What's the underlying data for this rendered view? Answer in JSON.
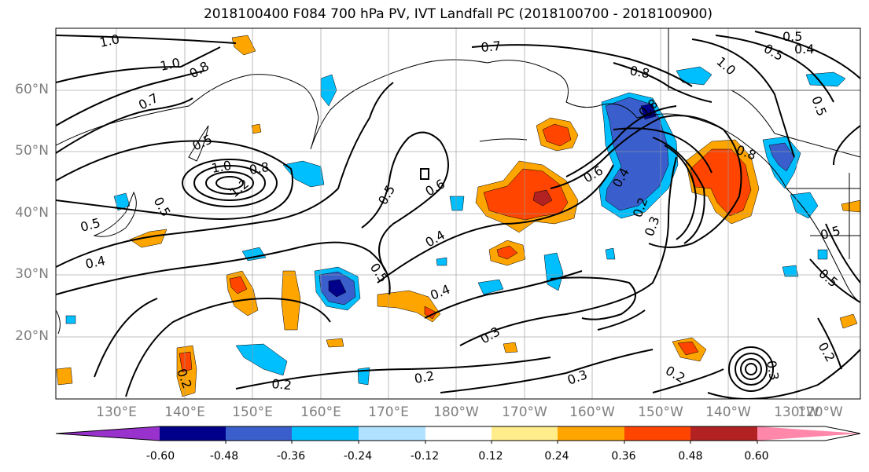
{
  "title": "2018100400 F084 700 hPa PV, IVT Landfall PC (2018100700 - 2018100900)",
  "lat_labels": [
    "60°N",
    "50°N",
    "40°N",
    "30°N",
    "20°N"
  ],
  "lon_labels": [
    "130°E",
    "140°E",
    "150°E",
    "160°E",
    "170°E",
    "180°W",
    "170°W",
    "160°W",
    "150°W",
    "140°W",
    "130°W",
    "120°W"
  ],
  "colorbar": {
    "colors": [
      "#9932cc",
      "#00008b",
      "#3a5fcd",
      "#00bfff",
      "#b0e2ff",
      "#ffffff",
      "#ffec8b",
      "#ffa500",
      "#ff4500",
      "#b22222",
      "#ff88aa"
    ],
    "tick_labels": [
      "-0.60",
      "-0.48",
      "-0.36",
      "-0.24",
      "-0.12",
      "0.12",
      "0.24",
      "0.36",
      "0.48",
      "0.60"
    ]
  },
  "contour_labels": [
    {
      "text": "1.0"
    },
    {
      "text": "1.0"
    },
    {
      "text": "0.8"
    },
    {
      "text": "0.7"
    },
    {
      "text": "0.5"
    },
    {
      "text": "1.0"
    },
    {
      "text": "0.8"
    },
    {
      "text": "1.2"
    },
    {
      "text": "0.5"
    },
    {
      "text": "0.5"
    },
    {
      "text": "0.4"
    },
    {
      "text": "0.5"
    },
    {
      "text": "0.6"
    },
    {
      "text": "0.4"
    },
    {
      "text": "0.5"
    },
    {
      "text": "0.4"
    },
    {
      "text": "0.3"
    },
    {
      "text": "0.2"
    },
    {
      "text": "0.2"
    },
    {
      "text": "0.2"
    },
    {
      "text": "0.7"
    },
    {
      "text": "0.8"
    },
    {
      "text": "0.6"
    },
    {
      "text": "0.4"
    },
    {
      "text": "0.8"
    },
    {
      "text": "0.2"
    },
    {
      "text": "0.3"
    },
    {
      "text": "0.3"
    },
    {
      "text": "0.2"
    },
    {
      "text": "0.5"
    },
    {
      "text": "0.4"
    },
    {
      "text": "1.0"
    },
    {
      "text": "0.5"
    },
    {
      "text": "0.5"
    },
    {
      "text": "0.5"
    },
    {
      "text": "0.2"
    },
    {
      "text": "0.3"
    },
    {
      "text": "0.8"
    },
    {
      "text": "0.5"
    }
  ]
}
